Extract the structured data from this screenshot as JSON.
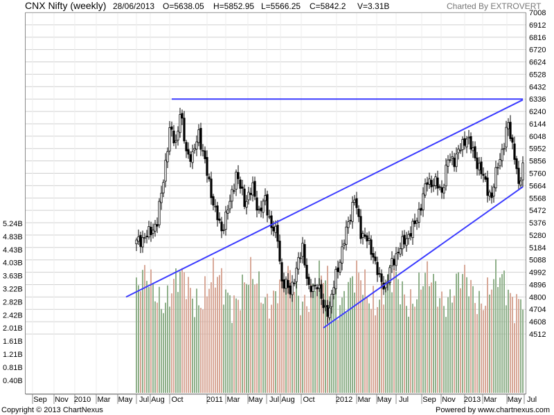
{
  "header": {
    "title": "CNX Nifty (weekly)",
    "date": "28/06/2013",
    "open": "O=5638.05",
    "high": "H=5852.95",
    "low": "L=5566.25",
    "close": "C=5842.2",
    "volume": "V=3.31B",
    "credit": "Charted By EXTROVERT"
  },
  "footer": {
    "copyright": "Copyright © 2013 ChartNexus",
    "powered": "Powered by www.chartnexus.com"
  },
  "colors": {
    "price_line": "#000000",
    "trendline": "#3a3aff",
    "volume_up": "#8fb08a",
    "volume_down": "#d8a898",
    "grid": "#cfcfcf"
  },
  "chart_data": {
    "type": "candlestick",
    "title": "CNX Nifty (weekly)",
    "price_axis": {
      "position": "right",
      "ticks": [
        7008,
        6912,
        6816,
        6720,
        6624,
        6528,
        6432,
        6336,
        6240,
        6144,
        6048,
        5952,
        5856,
        5760,
        5664,
        5568,
        5472,
        5376,
        5280,
        5184,
        5088,
        4992,
        4896,
        4800,
        4704,
        4608,
        4512
      ]
    },
    "volume_axis": {
      "position": "left",
      "ticks": [
        "5.24B",
        "4.83B",
        "4.43B",
        "4.03B",
        "3.63B",
        "3.22B",
        "2.82B",
        "2.42B",
        "2.01B",
        "1.61B",
        "1.21B",
        "0.81B",
        "0.40B"
      ]
    },
    "x_axis": {
      "ticks": [
        "Sep",
        "Nov",
        "2010",
        "Mar",
        "May",
        "Jul",
        "Aug",
        "Oct",
        "2011",
        "Mar",
        "May",
        "Jul",
        "Aug",
        "Oct",
        "2012",
        "Mar",
        "May",
        "Jul",
        "Sep",
        "Nov",
        "2013",
        "Mar",
        "May",
        "Jul"
      ]
    },
    "grid": true,
    "anchors": [
      {
        "i": 0,
        "price": 5220
      },
      {
        "i": 6,
        "price": 5290
      },
      {
        "i": 10,
        "price": 5380
      },
      {
        "i": 12,
        "price": 5600
      },
      {
        "i": 16,
        "price": 6090
      },
      {
        "i": 19,
        "price": 6000
      },
      {
        "i": 21,
        "price": 6230
      },
      {
        "i": 24,
        "price": 5930
      },
      {
        "i": 27,
        "price": 5880
      },
      {
        "i": 30,
        "price": 6080
      },
      {
        "i": 34,
        "price": 5760
      },
      {
        "i": 38,
        "price": 5460
      },
      {
        "i": 41,
        "price": 5320
      },
      {
        "i": 45,
        "price": 5530
      },
      {
        "i": 48,
        "price": 5760
      },
      {
        "i": 52,
        "price": 5540
      },
      {
        "i": 56,
        "price": 5640
      },
      {
        "i": 59,
        "price": 5460
      },
      {
        "i": 62,
        "price": 5550
      },
      {
        "i": 65,
        "price": 5350
      },
      {
        "i": 68,
        "price": 5260
      },
      {
        "i": 70,
        "price": 4920
      },
      {
        "i": 74,
        "price": 4850
      },
      {
        "i": 77,
        "price": 5000
      },
      {
        "i": 80,
        "price": 5200
      },
      {
        "i": 83,
        "price": 4840
      },
      {
        "i": 87,
        "price": 4910
      },
      {
        "i": 90,
        "price": 4720
      },
      {
        "i": 93,
        "price": 4700
      },
      {
        "i": 96,
        "price": 4980
      },
      {
        "i": 99,
        "price": 5150
      },
      {
        "i": 102,
        "price": 5390
      },
      {
        "i": 105,
        "price": 5560
      },
      {
        "i": 108,
        "price": 5310
      },
      {
        "i": 111,
        "price": 5240
      },
      {
        "i": 114,
        "price": 5130
      },
      {
        "i": 117,
        "price": 4930
      },
      {
        "i": 120,
        "price": 4890
      },
      {
        "i": 123,
        "price": 5060
      },
      {
        "i": 126,
        "price": 5160
      },
      {
        "i": 130,
        "price": 5260
      },
      {
        "i": 134,
        "price": 5360
      },
      {
        "i": 137,
        "price": 5520
      },
      {
        "i": 140,
        "price": 5700
      },
      {
        "i": 144,
        "price": 5680
      },
      {
        "i": 147,
        "price": 5620
      },
      {
        "i": 150,
        "price": 5860
      },
      {
        "i": 153,
        "price": 5870
      },
      {
        "i": 156,
        "price": 5950
      },
      {
        "i": 159,
        "price": 6050
      },
      {
        "i": 162,
        "price": 5920
      },
      {
        "i": 165,
        "price": 5810
      },
      {
        "i": 168,
        "price": 5680
      },
      {
        "i": 171,
        "price": 5570
      },
      {
        "i": 174,
        "price": 5840
      },
      {
        "i": 177,
        "price": 5980
      },
      {
        "i": 179,
        "price": 6150
      },
      {
        "i": 182,
        "price": 5900
      },
      {
        "i": 184,
        "price": 5640
      },
      {
        "i": 186,
        "price": 5840
      }
    ],
    "trendlines": [
      {
        "name": "resistance",
        "from": {
          "i": 17,
          "price": 6336
        },
        "to": {
          "i": 186,
          "price": 6336
        }
      },
      {
        "name": "long-support",
        "from": {
          "i": -5,
          "price": 4800
        },
        "to": {
          "i": 186,
          "price": 6330
        }
      },
      {
        "name": "channel-lower",
        "from": {
          "i": 90,
          "price": 4560
        },
        "to": {
          "i": 186,
          "price": 5655
        }
      }
    ]
  }
}
